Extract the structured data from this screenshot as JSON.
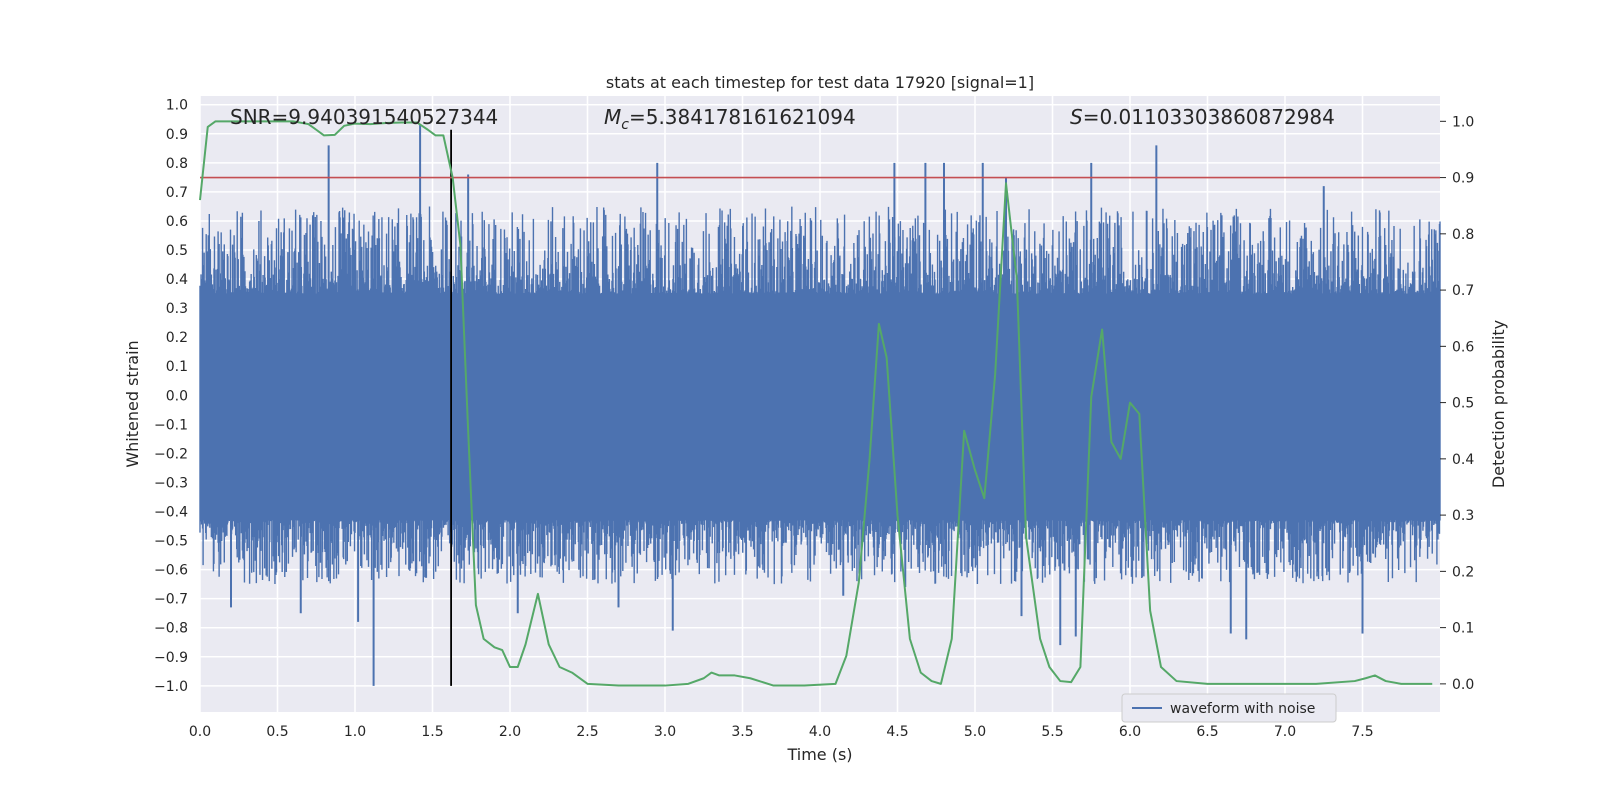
{
  "chart_data": {
    "type": "line",
    "title": "stats at each timestep for test data 17920 [signal=1]",
    "xlabel": "Time (s)",
    "ylabel_left": "Whitened strain",
    "ylabel_right": "Detection probability",
    "xlim": [
      0.0,
      8.0
    ],
    "ylim_left": [
      -1.09,
      1.03
    ],
    "ylim_right": [
      -0.05,
      1.045
    ],
    "grid": true,
    "legend_placement": "bottom-right",
    "x_ticks": [
      0.0,
      0.5,
      1.0,
      1.5,
      2.0,
      2.5,
      3.0,
      3.5,
      4.0,
      4.5,
      5.0,
      5.5,
      6.0,
      6.5,
      7.0,
      7.5
    ],
    "x_tick_labels": [
      "0.0",
      "0.5",
      "1.0",
      "1.5",
      "2.0",
      "2.5",
      "3.0",
      "3.5",
      "4.0",
      "4.5",
      "5.0",
      "5.5",
      "6.0",
      "6.5",
      "7.0",
      "7.5"
    ],
    "y_left_ticks": [
      1.0,
      0.9,
      0.8,
      0.7,
      0.6,
      0.5,
      0.4,
      0.3,
      0.2,
      0.1,
      0.0,
      -0.1,
      -0.2,
      -0.3,
      -0.4,
      -0.5,
      -0.6,
      -0.7,
      -0.8,
      -0.9,
      -1.0
    ],
    "y_left_tick_labels": [
      "1.0",
      "0.9",
      "0.8",
      "0.7",
      "0.6",
      "0.5",
      "0.4",
      "0.3",
      "0.2",
      "0.1",
      "0.0",
      "−0.1",
      "−0.2",
      "−0.3",
      "−0.4",
      "−0.5",
      "−0.6",
      "−0.7",
      "−0.8",
      "−0.9",
      "−1.0"
    ],
    "y_right_ticks": [
      1.0,
      0.9,
      0.8,
      0.7,
      0.6,
      0.5,
      0.4,
      0.3,
      0.2,
      0.1,
      0.0
    ],
    "y_right_tick_labels": [
      "1.0",
      "0.9",
      "0.8",
      "0.7",
      "0.6",
      "0.5",
      "0.4",
      "0.3",
      "0.2",
      "0.1",
      "0.0"
    ],
    "annotations": [
      {
        "text": "SNR=9.940391540527344"
      },
      {
        "text_italic": "M",
        "sub": "c",
        "text": "=5.384178161621094"
      },
      {
        "text_italic": "S",
        "text": "=0.01103303860872984"
      }
    ],
    "threshold_right": 0.9,
    "marker_time": 1.62,
    "series": [
      {
        "name": "waveform with noise",
        "axis": "left",
        "color": "#4c72b0",
        "x_range": [
          0.0,
          8.0
        ],
        "envelope_upper": 0.35,
        "envelope_lower": -0.43,
        "spike_peaks": [
          {
            "x": 0.83,
            "y": 0.86
          },
          {
            "x": 1.42,
            "y": 0.93
          },
          {
            "x": 1.73,
            "y": 0.76
          },
          {
            "x": 2.95,
            "y": 0.8
          },
          {
            "x": 4.48,
            "y": 0.8
          },
          {
            "x": 4.68,
            "y": 0.8
          },
          {
            "x": 4.8,
            "y": 0.8
          },
          {
            "x": 5.05,
            "y": 0.8
          },
          {
            "x": 5.2,
            "y": 0.75
          },
          {
            "x": 5.75,
            "y": 0.8
          },
          {
            "x": 6.17,
            "y": 0.86
          },
          {
            "x": 7.25,
            "y": 0.72
          },
          {
            "x": 1.12,
            "y": -1.0
          },
          {
            "x": 1.02,
            "y": -0.78
          },
          {
            "x": 0.65,
            "y": -0.75
          },
          {
            "x": 0.2,
            "y": -0.73
          },
          {
            "x": 2.05,
            "y": -0.75
          },
          {
            "x": 2.7,
            "y": -0.73
          },
          {
            "x": 3.05,
            "y": -0.81
          },
          {
            "x": 4.15,
            "y": -0.69
          },
          {
            "x": 4.55,
            "y": -0.66
          },
          {
            "x": 5.3,
            "y": -0.76
          },
          {
            "x": 5.55,
            "y": -0.86
          },
          {
            "x": 5.65,
            "y": -0.83
          },
          {
            "x": 6.65,
            "y": -0.82
          },
          {
            "x": 6.75,
            "y": -0.84
          },
          {
            "x": 7.5,
            "y": -0.82
          }
        ]
      },
      {
        "name": "",
        "axis": "right",
        "color": "#55a868",
        "x": [
          0.0,
          0.05,
          0.1,
          0.2,
          0.3,
          0.5,
          0.6,
          0.7,
          0.75,
          0.8,
          0.87,
          0.93,
          1.0,
          1.1,
          1.2,
          1.3,
          1.4,
          1.47,
          1.52,
          1.57,
          1.63,
          1.68,
          1.73,
          1.78,
          1.83,
          1.9,
          1.95,
          2.0,
          2.05,
          2.1,
          2.18,
          2.25,
          2.32,
          2.4,
          2.5,
          2.7,
          3.0,
          3.15,
          3.25,
          3.3,
          3.35,
          3.45,
          3.55,
          3.7,
          3.9,
          4.1,
          4.17,
          4.25,
          4.32,
          4.38,
          4.43,
          4.5,
          4.58,
          4.65,
          4.72,
          4.78,
          4.85,
          4.93,
          5.0,
          5.06,
          5.13,
          5.2,
          5.27,
          5.33,
          5.42,
          5.48,
          5.55,
          5.62,
          5.68,
          5.75,
          5.82,
          5.88,
          5.94,
          6.0,
          6.06,
          6.13,
          6.2,
          6.3,
          6.5,
          6.7,
          6.9,
          7.2,
          7.45,
          7.52,
          7.58,
          7.65,
          7.75,
          7.95
        ],
        "y": [
          0.86,
          0.99,
          1.0,
          1.0,
          1.0,
          1.0,
          1.0,
          0.995,
          0.985,
          0.975,
          0.976,
          0.992,
          0.996,
          0.995,
          0.997,
          0.998,
          0.998,
          0.985,
          0.975,
          0.975,
          0.9,
          0.78,
          0.45,
          0.14,
          0.08,
          0.065,
          0.06,
          0.03,
          0.03,
          0.07,
          0.16,
          0.07,
          0.03,
          0.02,
          0.0,
          -0.003,
          -0.003,
          0.0,
          0.01,
          0.02,
          0.015,
          0.015,
          0.01,
          -0.003,
          -0.003,
          0.0,
          0.05,
          0.18,
          0.4,
          0.64,
          0.58,
          0.3,
          0.08,
          0.02,
          0.005,
          0.0,
          0.08,
          0.45,
          0.38,
          0.33,
          0.55,
          0.89,
          0.72,
          0.26,
          0.08,
          0.03,
          0.005,
          0.003,
          0.03,
          0.51,
          0.63,
          0.43,
          0.4,
          0.5,
          0.48,
          0.13,
          0.03,
          0.005,
          0.0,
          0.0,
          0.0,
          0.0,
          0.005,
          0.01,
          0.015,
          0.005,
          0.0,
          0.0
        ]
      },
      {
        "name": "",
        "axis": "right",
        "color": "#c44e52",
        "type": "threshold",
        "y": 0.9
      }
    ]
  }
}
